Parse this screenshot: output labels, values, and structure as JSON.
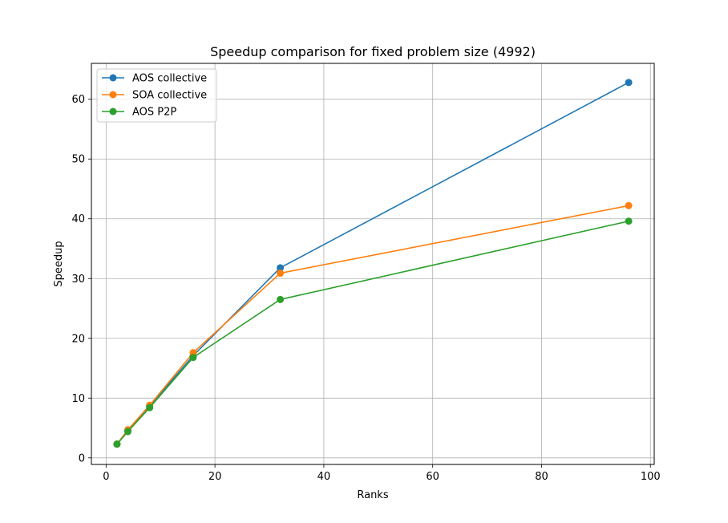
{
  "chart_data": {
    "type": "line",
    "title": "Speedup comparison for fixed problem size (4992)",
    "xlabel": "Ranks",
    "ylabel": "Speedup",
    "xlim": [
      -2.7,
      100.7
    ],
    "ylim": [
      -1.1,
      66
    ],
    "x_ticks": [
      0,
      20,
      40,
      60,
      80,
      100
    ],
    "y_ticks": [
      0,
      10,
      20,
      30,
      40,
      50,
      60
    ],
    "grid": true,
    "legend_position": "upper-left",
    "x": [
      2,
      4,
      8,
      16,
      32,
      96
    ],
    "series": [
      {
        "name": "AOS collective",
        "color": "#1f77b4",
        "values": [
          2.3,
          4.6,
          8.7,
          17.1,
          31.8,
          62.8
        ]
      },
      {
        "name": "SOA collective",
        "color": "#ff7f0e",
        "values": [
          2.3,
          4.7,
          8.8,
          17.6,
          30.9,
          42.2
        ]
      },
      {
        "name": "AOS P2P",
        "color": "#2ca02c",
        "values": [
          2.3,
          4.4,
          8.4,
          16.8,
          26.5,
          39.6
        ]
      }
    ]
  }
}
